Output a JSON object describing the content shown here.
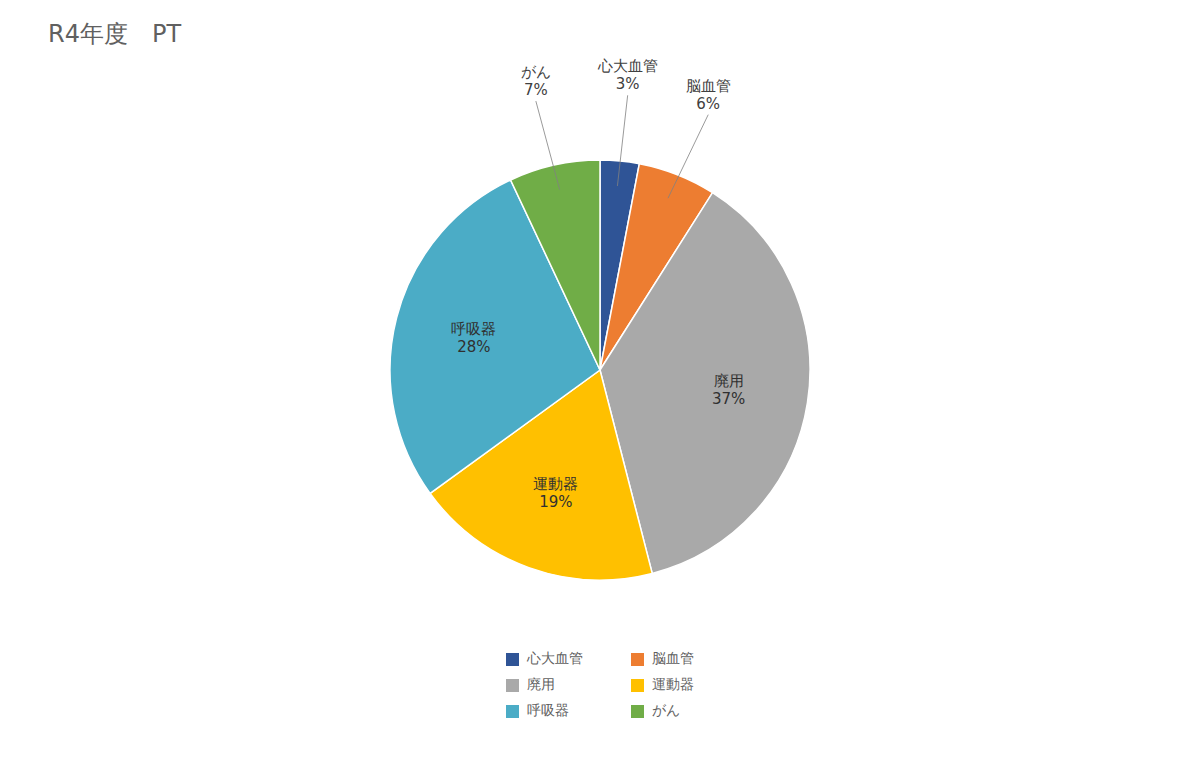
{
  "chart_data": {
    "type": "pie",
    "title": "R4年度　PT",
    "categories": [
      "心大血管",
      "脳血管",
      "廃用",
      "運動器",
      "呼吸器",
      "がん"
    ],
    "values": [
      3,
      6,
      37,
      19,
      28,
      7
    ],
    "value_labels": [
      "3%",
      "6%",
      "37%",
      "19%",
      "28%",
      "7%"
    ],
    "colors": [
      "#2F5496",
      "#ED7D31",
      "#A9A9A9",
      "#FFC000",
      "#4BACC6",
      "#70AD47"
    ],
    "data_labels": true,
    "legend": "bottom"
  }
}
